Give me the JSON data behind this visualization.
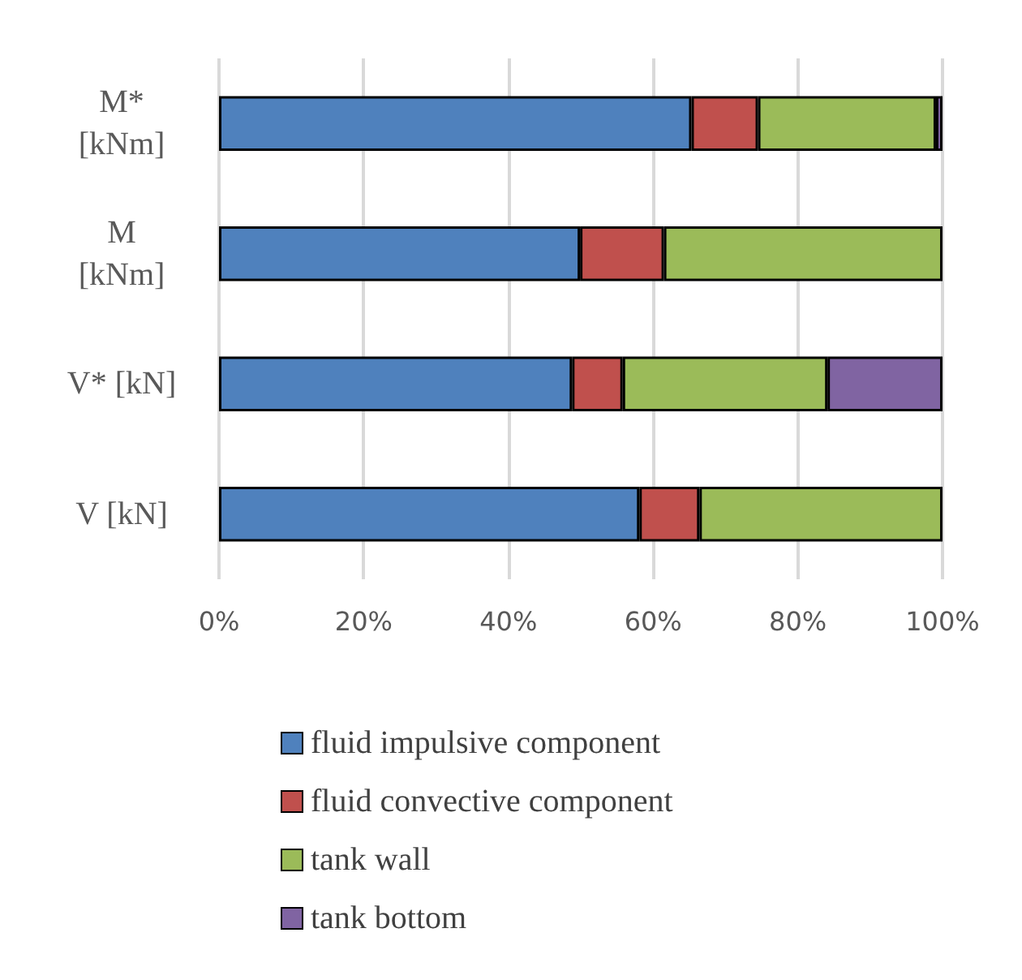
{
  "chart_data": {
    "type": "bar",
    "orientation": "horizontal",
    "stacked": true,
    "categories": [
      "M* [kNm]",
      "M [kNm]",
      "V* [kN]",
      "V [kN]"
    ],
    "series": [
      {
        "name": "fluid impulsive component",
        "color": "#4f81bd",
        "values": [
          65.3,
          49.9,
          48.8,
          58.1
        ]
      },
      {
        "name": "fluid convective component",
        "color": "#c0504d",
        "values": [
          9.2,
          11.6,
          7.0,
          8.3
        ]
      },
      {
        "name": "tank wall",
        "color": "#9bbb59",
        "values": [
          24.6,
          38.5,
          28.3,
          33.6
        ]
      },
      {
        "name": "tank bottom",
        "color": "#8064a2",
        "values": [
          0.9,
          null,
          15.9,
          null
        ]
      }
    ],
    "xlim": [
      0,
      100
    ],
    "xticks": [
      {
        "value": 0,
        "label": "0%"
      },
      {
        "value": 20,
        "label": "20%"
      },
      {
        "value": 40,
        "label": "40%"
      },
      {
        "value": 60,
        "label": "60%"
      },
      {
        "value": 80,
        "label": "80%"
      },
      {
        "value": 100,
        "label": "100%"
      }
    ],
    "grid": "x",
    "legend": "bottom"
  }
}
